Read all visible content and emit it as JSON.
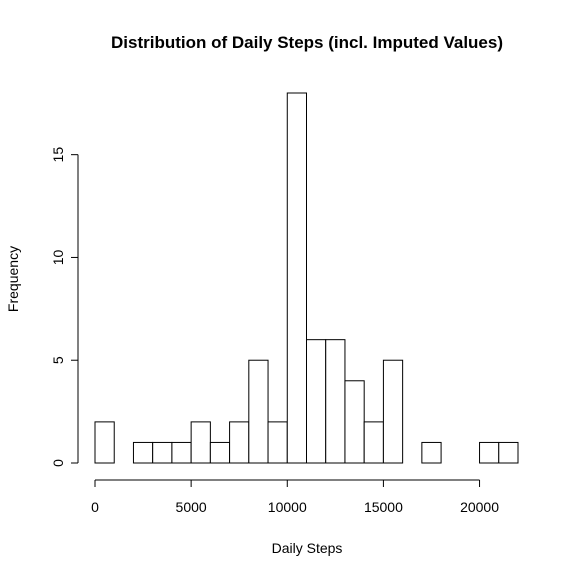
{
  "chart_data": {
    "type": "bar",
    "title": "Distribution of Daily Steps (incl. Imputed Values)",
    "xlabel": "Daily Steps",
    "ylabel": "Frequency",
    "xlim": [
      0,
      22000
    ],
    "ylim": [
      0,
      18
    ],
    "bin_width": 1000,
    "bins": [
      {
        "start": 0,
        "end": 1000,
        "value": 2
      },
      {
        "start": 1000,
        "end": 2000,
        "value": 0
      },
      {
        "start": 2000,
        "end": 3000,
        "value": 1
      },
      {
        "start": 3000,
        "end": 4000,
        "value": 1
      },
      {
        "start": 4000,
        "end": 5000,
        "value": 1
      },
      {
        "start": 5000,
        "end": 6000,
        "value": 2
      },
      {
        "start": 6000,
        "end": 7000,
        "value": 1
      },
      {
        "start": 7000,
        "end": 8000,
        "value": 2
      },
      {
        "start": 8000,
        "end": 9000,
        "value": 5
      },
      {
        "start": 9000,
        "end": 10000,
        "value": 2
      },
      {
        "start": 10000,
        "end": 11000,
        "value": 18
      },
      {
        "start": 11000,
        "end": 12000,
        "value": 6
      },
      {
        "start": 12000,
        "end": 13000,
        "value": 6
      },
      {
        "start": 13000,
        "end": 14000,
        "value": 4
      },
      {
        "start": 14000,
        "end": 15000,
        "value": 2
      },
      {
        "start": 15000,
        "end": 16000,
        "value": 5
      },
      {
        "start": 16000,
        "end": 17000,
        "value": 0
      },
      {
        "start": 17000,
        "end": 18000,
        "value": 1
      },
      {
        "start": 18000,
        "end": 19000,
        "value": 0
      },
      {
        "start": 19000,
        "end": 20000,
        "value": 0
      },
      {
        "start": 20000,
        "end": 21000,
        "value": 1
      },
      {
        "start": 21000,
        "end": 22000,
        "value": 1
      }
    ],
    "x_ticks": [
      0,
      5000,
      10000,
      15000,
      20000
    ],
    "x_tick_labels": [
      "0",
      "5000",
      "10000",
      "15000",
      "20000"
    ],
    "y_ticks": [
      0,
      5,
      10,
      15
    ],
    "y_tick_labels": [
      "0",
      "5",
      "10",
      "15"
    ],
    "grid": false,
    "legend": "none"
  }
}
